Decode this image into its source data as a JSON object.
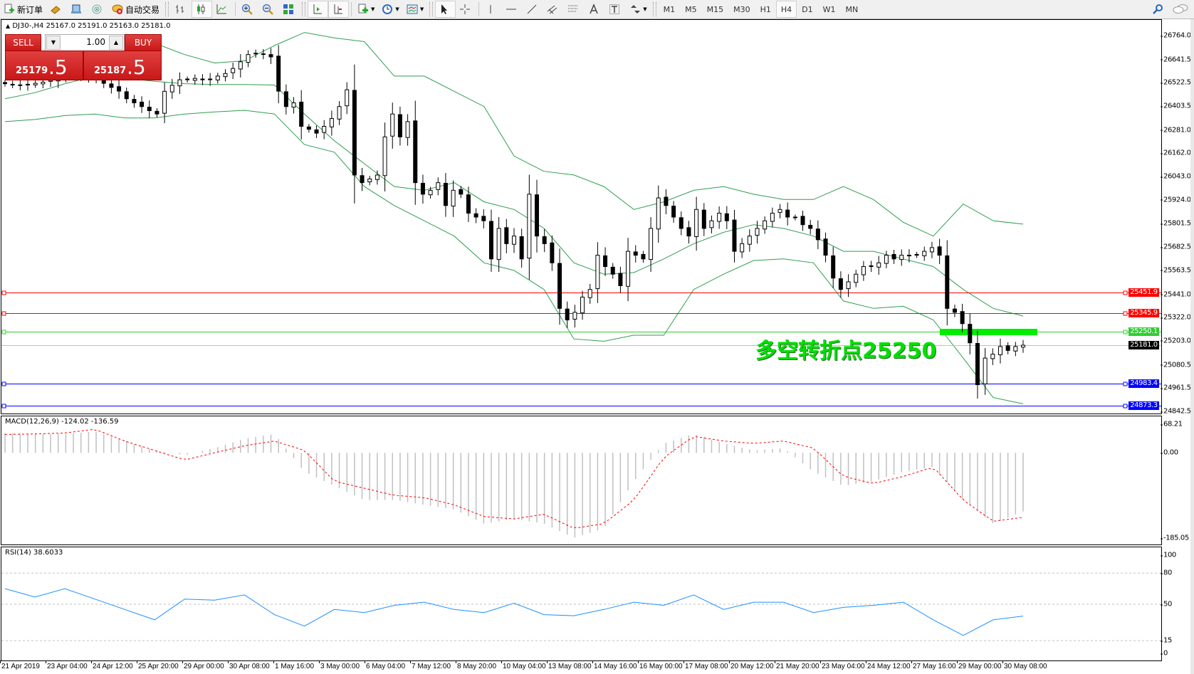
{
  "toolbar": {
    "new_order": "新订单",
    "auto_trading": "自动交易",
    "timeframes": [
      "M1",
      "M5",
      "M15",
      "M30",
      "H1",
      "H4",
      "D1",
      "W1",
      "MN"
    ],
    "active_timeframe": "H4",
    "icons": [
      "new-order-icon",
      "market-watch-icon",
      "data-window-icon",
      "signals-icon",
      "auto-trading-icon",
      "bar-chart-icon",
      "candlestick-icon",
      "line-chart-icon",
      "zoom-in-icon",
      "zoom-out-icon",
      "tile-windows-icon",
      "chart-shift-icon",
      "autoscroll-icon",
      "new-chart-icon",
      "periods-icon",
      "templates-icon",
      "cursor-icon",
      "crosshair-icon",
      "vertical-line-icon",
      "horizontal-line-icon",
      "trendline-icon",
      "equidistant-channel-icon",
      "fibonacci-icon",
      "text-icon",
      "text-label-icon",
      "arrows-icon",
      "search-icon",
      "chat-icon"
    ]
  },
  "chart": {
    "header": "DJ30-,H4",
    "ohlc": "25167.0 25191.0 25163.0 25181.0",
    "trade_panel": {
      "sell_label": "SELL",
      "buy_label": "BUY",
      "lot": "1.00",
      "sell_price_main": "25179",
      "sell_price_frac": ".5",
      "buy_price_main": "25187",
      "buy_price_frac": ".5"
    },
    "annotation": "多空转折点25250",
    "price_axis": [
      "26764.0",
      "26641.5",
      "26522.5",
      "26403.5",
      "26281.0",
      "26162.0",
      "26043.0",
      "25924.0",
      "25801.5",
      "25682.5",
      "25563.5",
      "25441.0",
      "25322.0",
      "25203.0",
      "25080.5",
      "24961.5",
      "24842.5"
    ],
    "price_range": [
      24842.5,
      26764.0
    ],
    "levels": [
      {
        "price": 25451.9,
        "label": "25451.9",
        "color": "#ff0000"
      },
      {
        "price": 25345.9,
        "label": "25345.9",
        "color": "#ff0000"
      },
      {
        "price": 25250.1,
        "label": "25250.1",
        "color": "#32cd32"
      },
      {
        "price": 25181.0,
        "label": "25181.0",
        "color": "#c0c0c0",
        "tag_color": "#000000"
      },
      {
        "price": 24983.4,
        "label": "24983.4",
        "color": "#0000ff"
      },
      {
        "price": 24873.3,
        "label": "24873.3",
        "color": "#0000ff"
      }
    ],
    "highlight_level": {
      "price": 25250,
      "color": "#00ee00"
    },
    "time_axis": [
      "21 Apr 2019",
      "23 Apr 04:00",
      "24 Apr 12:00",
      "25 Apr 20:00",
      "29 Apr 00:00",
      "30 Apr 08:00",
      "1 May 16:00",
      "3 May 00:00",
      "6 May 04:00",
      "7 May 12:00",
      "8 May 20:00",
      "10 May 04:00",
      "13 May 08:00",
      "14 May 16:00",
      "16 May 00:00",
      "17 May 08:00",
      "20 May 12:00",
      "21 May 20:00",
      "23 May 04:00",
      "24 May 12:00",
      "27 May 16:00",
      "29 May 00:00",
      "30 May 08:00"
    ]
  },
  "chart_data": [
    {
      "type": "candlestick",
      "symbol": "DJ30-",
      "timeframe": "H4",
      "close": [
        26518,
        26515,
        26511,
        26515,
        26520,
        26526,
        26535,
        26545,
        26557,
        26565,
        26577,
        26560,
        26540,
        26520,
        26499,
        26480,
        26441,
        26420,
        26401,
        26380,
        26363,
        26479,
        26510,
        26538,
        26538,
        26545,
        26538,
        26540,
        26557,
        26570,
        26596,
        26630,
        26667,
        26674,
        26670,
        26655,
        26480,
        26401,
        26420,
        26300,
        26285,
        26265,
        26300,
        26340,
        26401,
        26487,
        26051,
        26012,
        26031,
        26051,
        26246,
        26363,
        26246,
        26324,
        26012,
        25953,
        25973,
        26012,
        25895,
        25973,
        25953,
        25856,
        25836,
        25817,
        25622,
        25778,
        25700,
        25739,
        25622,
        25953,
        25739,
        25700,
        25602,
        25369,
        25310,
        25349,
        25427,
        25466,
        25641,
        25583,
        25544,
        25485,
        25661,
        25641,
        25622,
        25778,
        25934,
        25895,
        25836,
        25778,
        25739,
        25875,
        25778,
        25817,
        25856,
        25817,
        25661,
        25700,
        25739,
        25778,
        25817,
        25856,
        25875,
        25836,
        25836,
        25797,
        25778,
        25720,
        25641,
        25524,
        25466,
        25505,
        25544,
        25583,
        25583,
        25602,
        25641,
        25622,
        25641,
        25641,
        25641,
        25661,
        25680,
        25641,
        25369,
        25349,
        25291,
        25193,
        24979,
        25115,
        25135,
        25174,
        25154,
        25174,
        25181
      ],
      "bollinger": {
        "upper": [
          null,
          null,
          null,
          null,
          null,
          26725,
          26667,
          26624,
          26635,
          26713,
          26780,
          26752,
          26733,
          26557,
          26557,
          26479,
          26401,
          26148,
          26070,
          26051,
          25992,
          25875,
          25914,
          25973,
          25992,
          25953,
          25926,
          25926,
          25992,
          25926,
          25809,
          25739,
          25903,
          25817,
          25800
        ],
        "middle": [
          26441,
          26472,
          26518,
          26557,
          26546,
          26530,
          26518,
          26514,
          26514,
          26511,
          26363,
          26226,
          26109,
          25992,
          25973,
          26012,
          25914,
          25875,
          25778,
          25602,
          25544,
          25552,
          25622,
          25700,
          25758,
          25797,
          25778,
          25739,
          25661,
          25661,
          25622,
          25583,
          25466,
          25369,
          25330
        ],
        "lower": [
          26324,
          26335,
          26355,
          26363,
          26343,
          26343,
          26363,
          26374,
          26382,
          26363,
          26207,
          26168,
          25992,
          25895,
          25817,
          25739,
          25602,
          25563,
          25466,
          25213,
          25201,
          25232,
          25232,
          25466,
          25544,
          25614,
          25622,
          25602,
          25407,
          25369,
          25380,
          25310,
          25115,
          24913,
          24881
        ],
        "color": "#2e9e4e"
      }
    },
    {
      "type": "bar",
      "title": "MACD(12,26,9) -124.02 -136.59",
      "ylim": [
        -185.05,
        68.21
      ],
      "ticks": [
        "68.21",
        "0.00",
        "-185.05"
      ],
      "histogram": [
        42,
        40,
        40,
        45,
        25,
        5,
        -5,
        10,
        30,
        40,
        -40,
        -70,
        -100,
        -100,
        -110,
        -120,
        -150,
        -140,
        -150,
        -180,
        -160,
        -60,
        20,
        40,
        20,
        5,
        10,
        -40,
        -70,
        -60,
        -40,
        -30,
        -100,
        -150,
        -124.02
      ],
      "signal": [
        39,
        40,
        42,
        50,
        25,
        5,
        -15,
        0,
        15,
        25,
        5,
        -60,
        -75,
        -90,
        -95,
        -110,
        -135,
        -140,
        -130,
        -160,
        -150,
        -100,
        -10,
        35,
        25,
        20,
        25,
        10,
        -50,
        -65,
        -50,
        -30,
        -100,
        -145,
        -136.59
      ],
      "histogram_color": "#c0c0c0",
      "signal_color": "#ff0000"
    },
    {
      "type": "line",
      "title": "RSI(14) 38.6033",
      "ylim": [
        0,
        100
      ],
      "ticks": [
        "100",
        "80",
        "50",
        "15",
        "0"
      ],
      "levels": [
        80,
        50,
        15
      ],
      "values": [
        65,
        57,
        65,
        55,
        45,
        35,
        55,
        54,
        59,
        40,
        29,
        45,
        42,
        49,
        52,
        45,
        42,
        51,
        40,
        39,
        45,
        52,
        49,
        59,
        45,
        52,
        52,
        42,
        47,
        49,
        52,
        35,
        20,
        35,
        38.6033
      ],
      "color": "#1e90ff"
    }
  ]
}
